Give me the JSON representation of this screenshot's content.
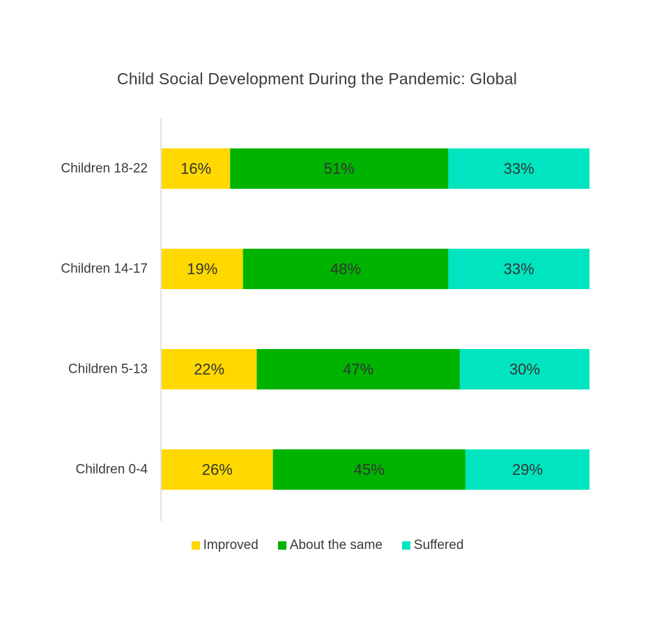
{
  "chart_data": {
    "type": "bar",
    "orientation": "horizontal",
    "stacked": true,
    "title": "Child Social Development During the Pandemic: Global",
    "categories": [
      "Children 18-22",
      "Children 14-17",
      "Children 5-13",
      "Children 0-4"
    ],
    "series": [
      {
        "name": "Improved",
        "color": "#ffd800",
        "values": [
          16,
          19,
          22,
          26
        ],
        "labels": [
          "16%",
          "19%",
          "22%",
          "26%"
        ]
      },
      {
        "name": "About the same",
        "color": "#00b300",
        "values": [
          51,
          48,
          47,
          45
        ],
        "labels": [
          "51%",
          "48%",
          "47%",
          "45%"
        ]
      },
      {
        "name": "Suffered",
        "color": "#00e5c0",
        "values": [
          33,
          33,
          30,
          29
        ],
        "labels": [
          "33%",
          "33%",
          "30%",
          "29%"
        ]
      }
    ],
    "xlim": [
      0,
      100
    ],
    "grid": false,
    "legend_position": "bottom"
  }
}
